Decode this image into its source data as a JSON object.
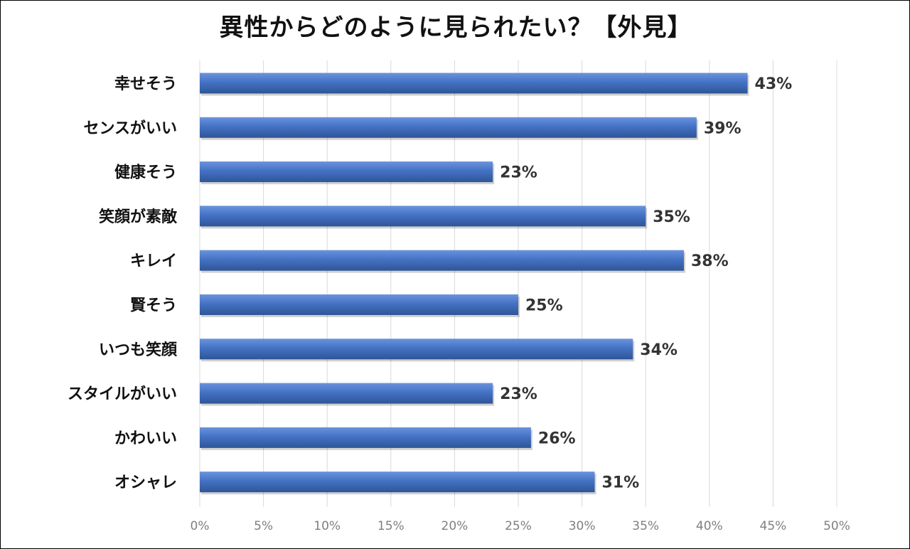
{
  "chart_data": {
    "type": "bar",
    "orientation": "horizontal",
    "title": "異性からどのように見られたい？【外見】",
    "categories": [
      "幸せそう",
      "センスがいい",
      "健康そう",
      "笑顔が素敵",
      "キレイ",
      "賢そう",
      "いつも笑顔",
      "スタイルがいい",
      "かわいい",
      "オシャレ"
    ],
    "values": [
      43,
      39,
      23,
      35,
      38,
      25,
      34,
      23,
      26,
      31
    ],
    "value_labels": [
      "43%",
      "39%",
      "23%",
      "35%",
      "38%",
      "25%",
      "34%",
      "23%",
      "26%",
      "31%"
    ],
    "xlim": [
      0,
      50
    ],
    "x_ticks": [
      0,
      5,
      10,
      15,
      20,
      25,
      30,
      35,
      40,
      45,
      50
    ],
    "x_tick_labels": [
      "0%",
      "5%",
      "10%",
      "15%",
      "20%",
      "25%",
      "30%",
      "35%",
      "40%",
      "45%",
      "50%"
    ],
    "xlabel": "",
    "ylabel": "",
    "grid": "vertical",
    "legend": "none",
    "colors": {
      "bar": "#4472C4",
      "bar_light": "#6a93dd",
      "bar_dark": "#2f5597",
      "grid": "#d9d9d9",
      "tick_text": "#7f7f7f",
      "title": "#111111"
    }
  }
}
